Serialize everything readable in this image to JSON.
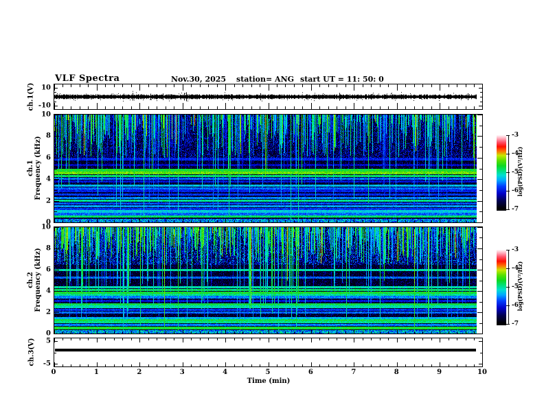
{
  "header": {
    "title": "VLF Spectra",
    "date": "Nov.30, 2025",
    "station": "station= ANG",
    "start_ut": "start UT =  11: 50: 0"
  },
  "xaxis": {
    "label": "Time (min)",
    "range": [
      0,
      10
    ],
    "major_ticks": [
      0,
      1,
      2,
      3,
      4,
      5,
      6,
      7,
      8,
      9,
      10
    ],
    "minor_step_min": 0.2,
    "data_end_min": 9.85
  },
  "colorbar": {
    "label": "log(PSD)(V²/Hz)",
    "ticks": [
      -3,
      -4,
      -5,
      -6,
      -7
    ],
    "range_top_to_bottom": [
      -3,
      -7
    ],
    "colormap_stops": [
      [
        0.0,
        "#000006"
      ],
      [
        0.1,
        "#000050"
      ],
      [
        0.2,
        "#0000c8"
      ],
      [
        0.3,
        "#0040ff"
      ],
      [
        0.38,
        "#00a8ff"
      ],
      [
        0.45,
        "#00e0d0"
      ],
      [
        0.52,
        "#00e070"
      ],
      [
        0.58,
        "#10d820"
      ],
      [
        0.65,
        "#58e000"
      ],
      [
        0.72,
        "#c8e800"
      ],
      [
        0.78,
        "#ff7000"
      ],
      [
        0.84,
        "#ff1000"
      ],
      [
        0.9,
        "#ff5068"
      ],
      [
        0.95,
        "#ffa8b8"
      ],
      [
        1.0,
        "#ffffff"
      ]
    ]
  },
  "chart_data": [
    {
      "id": "ch1_waveform",
      "type": "line",
      "ylabel": "ch.1(V)",
      "ytick_labels": [
        "10",
        "-10"
      ],
      "ytick_values": [
        10,
        -10
      ],
      "axis_range": [
        -13.6,
        13.6
      ],
      "description": "broadband noise trace centered near 0 V, peak amplitude about ±1.5 V across full 0-9.85 min record",
      "mean_v": 0,
      "noise_amp_v": 1.5
    },
    {
      "id": "ch1_spectrogram",
      "type": "heatmap",
      "ylabel_lines": [
        "ch.1",
        "Frequency (kHz)"
      ],
      "ylim": [
        0,
        10
      ],
      "ytick_labels": [
        "10",
        "8",
        "6",
        "4",
        "2",
        "0"
      ],
      "ytick_values": [
        10,
        8,
        6,
        4,
        2,
        0
      ],
      "zlabel": "log(PSD)(V²/Hz)",
      "zlim": [
        -7,
        -3
      ],
      "background_psd": -6.9,
      "upper_noise": {
        "f0": 6.0,
        "p": 0.45,
        "a": 1.3
      },
      "bottom_band": {
        "f_max": 0.35,
        "psd": -6.0
      },
      "horizontal_bands_khz": [
        {
          "f": 5.9,
          "psd": -6.0,
          "w": 0.15
        },
        {
          "f": 5.35,
          "psd": -6.2,
          "w": 0.1
        },
        {
          "f": 4.85,
          "psd": -4.7,
          "w": 0.12
        },
        {
          "f": 4.6,
          "psd": -4.4,
          "w": 0.14
        },
        {
          "f": 4.35,
          "psd": -4.9,
          "w": 0.1
        },
        {
          "f": 4.1,
          "psd": -5.7,
          "w": 0.1
        },
        {
          "f": 3.8,
          "psd": -6.1,
          "w": 0.1
        },
        {
          "f": 3.45,
          "psd": -5.4,
          "w": 0.1
        },
        {
          "f": 3.2,
          "psd": -5.7,
          "w": 0.1
        },
        {
          "f": 2.95,
          "psd": -6.0,
          "w": 0.12
        },
        {
          "f": 2.6,
          "psd": -5.9,
          "w": 0.1
        },
        {
          "f": 2.3,
          "psd": -5.6,
          "w": 0.1
        },
        {
          "f": 2.05,
          "psd": -5.0,
          "w": 0.1
        },
        {
          "f": 1.8,
          "psd": -5.8,
          "w": 0.1
        },
        {
          "f": 1.55,
          "psd": -5.5,
          "w": 0.1
        },
        {
          "f": 1.3,
          "psd": -5.9,
          "w": 0.1
        },
        {
          "f": 1.05,
          "psd": -5.3,
          "w": 0.1
        },
        {
          "f": 0.8,
          "psd": -5.7,
          "w": 0.1
        },
        {
          "f": 0.55,
          "psd": -4.9,
          "w": 0.1
        }
      ],
      "vertical_streaks": {
        "density": 0.7,
        "typical_reach_khz": [
          6,
          9.6
        ],
        "deep_fraction": 0.2,
        "psd_range": [
          -6.1,
          -4.4
        ]
      }
    },
    {
      "id": "ch2_spectrogram",
      "type": "heatmap",
      "ylabel_lines": [
        "ch.2",
        "Frequency (kHz)"
      ],
      "ylim": [
        0,
        10
      ],
      "ytick_labels": [
        "10",
        "8",
        "6",
        "4",
        "2",
        "0"
      ],
      "ytick_values": [
        10,
        8,
        6,
        4,
        2,
        0
      ],
      "zlabel": "log(PSD)(V²/Hz)",
      "zlim": [
        -7,
        -3
      ],
      "background_psd": -6.9,
      "upper_noise": {
        "f0": 6.5,
        "p": 0.6,
        "a": 1.6
      },
      "bottom_band": {
        "f_max": 0.35,
        "psd": -5.9
      },
      "horizontal_bands_khz": [
        {
          "f": 6.0,
          "psd": -5.1,
          "w": 0.12
        },
        {
          "f": 5.3,
          "psd": -5.7,
          "w": 0.1
        },
        {
          "f": 4.4,
          "psd": -5.1,
          "w": 0.1
        },
        {
          "f": 4.15,
          "psd": -4.9,
          "w": 0.1
        },
        {
          "f": 3.9,
          "psd": -4.7,
          "w": 0.1
        },
        {
          "f": 3.7,
          "psd": -5.0,
          "w": 0.1
        },
        {
          "f": 3.45,
          "psd": -5.6,
          "w": 0.1
        },
        {
          "f": 3.1,
          "psd": -6.1,
          "w": 0.1
        },
        {
          "f": 2.75,
          "psd": -4.8,
          "w": 0.1
        },
        {
          "f": 2.55,
          "psd": -5.1,
          "w": 0.1
        },
        {
          "f": 2.25,
          "psd": -5.9,
          "w": 0.1
        },
        {
          "f": 2.0,
          "psd": -5.7,
          "w": 0.1
        },
        {
          "f": 1.5,
          "psd": -5.4,
          "w": 0.1
        },
        {
          "f": 1.3,
          "psd": -4.8,
          "w": 0.1
        },
        {
          "f": 1.1,
          "psd": -5.0,
          "w": 0.1
        },
        {
          "f": 0.85,
          "psd": -5.6,
          "w": 0.1
        },
        {
          "f": 0.55,
          "psd": -4.7,
          "w": 0.1
        }
      ],
      "vertical_streaks": {
        "density": 0.8,
        "typical_reach_khz": [
          6.5,
          9.7
        ],
        "deep_fraction": 0.25,
        "psd_range": [
          -6.0,
          -4.3
        ]
      }
    },
    {
      "id": "ch3_level",
      "type": "line",
      "ylabel": "ch.3(V)",
      "ytick_labels": [
        "5",
        "-5"
      ],
      "ytick_values": [
        5,
        -5
      ],
      "axis_range": [
        -6.1,
        6.1
      ],
      "description": "constant level of about +1 V from 0 to 9.85 min",
      "value_v": 1.0
    }
  ]
}
